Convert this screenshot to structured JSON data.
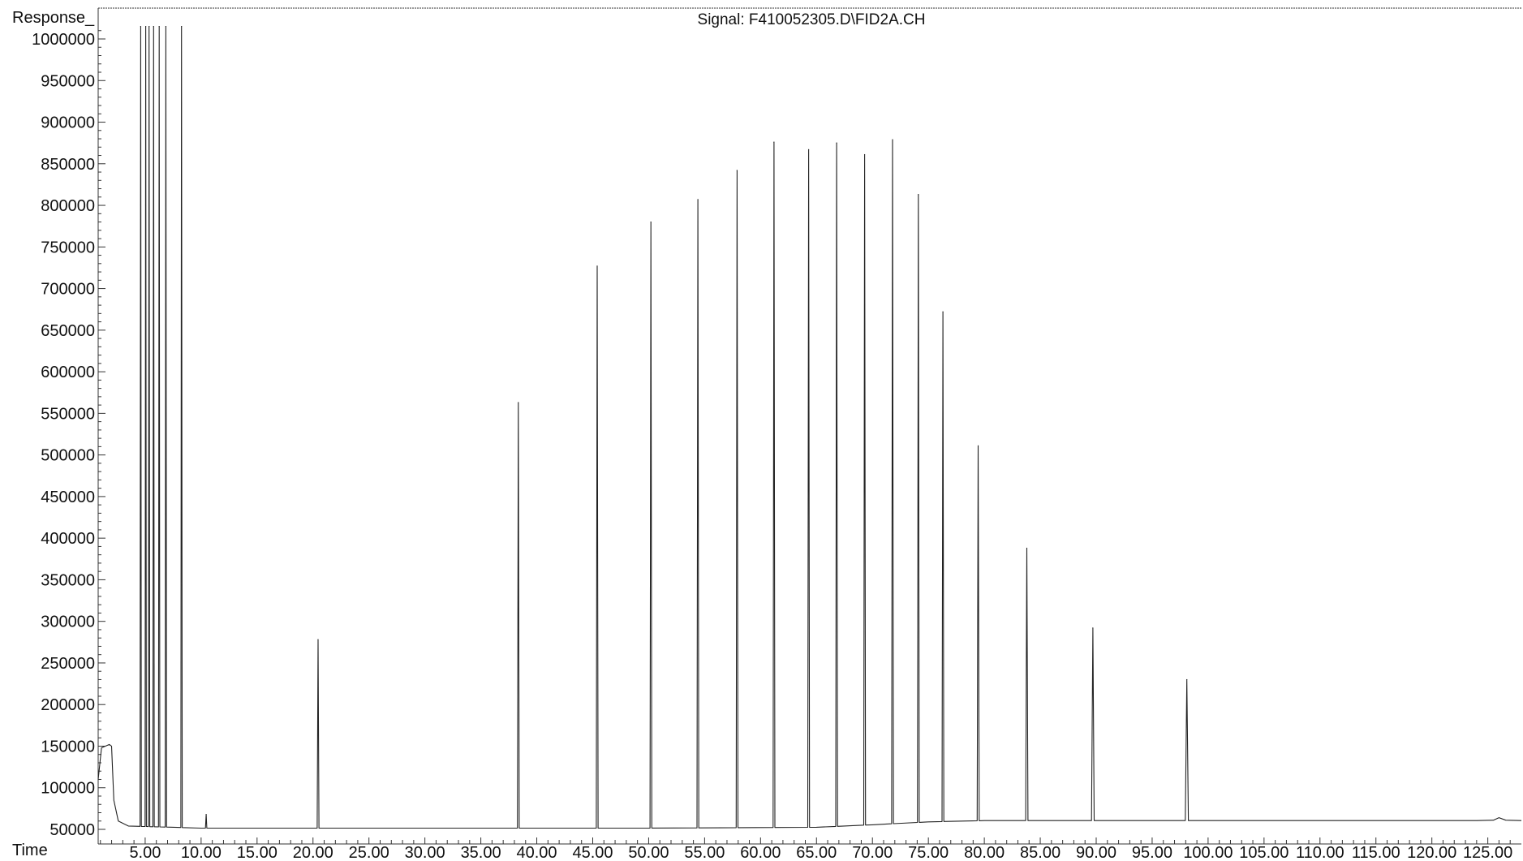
{
  "chart_data": {
    "type": "line",
    "title": "Signal: F410052305.D\\FID2A.CH",
    "ylabel": "Response_",
    "xlabel": "Time",
    "xlim": [
      0.8,
      128.0
    ],
    "ylim": [
      50000,
      1015000
    ],
    "x_ticks": [
      5,
      10,
      15,
      20,
      25,
      30,
      35,
      40,
      45,
      50,
      55,
      60,
      65,
      70,
      75,
      80,
      85,
      90,
      95,
      100,
      105,
      110,
      115,
      120,
      125
    ],
    "x_tick_labels": [
      "5.00",
      "10.00",
      "15.00",
      "20.00",
      "25.00",
      "30.00",
      "35.00",
      "40.00",
      "45.00",
      "50.00",
      "55.00",
      "60.00",
      "65.00",
      "70.00",
      "75.00",
      "80.00",
      "85.00",
      "90.00",
      "95.00",
      "100.00",
      "105.00",
      "110.00",
      "115.00",
      "120.00",
      "125.00"
    ],
    "y_ticks": [
      50000,
      100000,
      150000,
      200000,
      250000,
      300000,
      350000,
      400000,
      450000,
      500000,
      550000,
      600000,
      650000,
      700000,
      750000,
      800000,
      850000,
      900000,
      950000,
      1000000
    ],
    "y_tick_labels": [
      "50000",
      "100000",
      "150000",
      "200000",
      "250000",
      "300000",
      "350000",
      "400000",
      "450000",
      "500000",
      "550000",
      "600000",
      "650000",
      "700000",
      "750000",
      "800000",
      "850000",
      "900000",
      "950000",
      "1000000"
    ],
    "grid": false,
    "legend": "none",
    "colors": {
      "trace": "#222222",
      "axis": "#333333",
      "background": "#ffffff"
    },
    "baseline": [
      {
        "x": 0.8,
        "y": 110000
      },
      {
        "x": 1.1,
        "y": 148000
      },
      {
        "x": 1.8,
        "y": 152000
      },
      {
        "x": 2.0,
        "y": 150000
      },
      {
        "x": 2.2,
        "y": 85000
      },
      {
        "x": 2.6,
        "y": 60000
      },
      {
        "x": 3.5,
        "y": 54000
      },
      {
        "x": 10,
        "y": 51500
      },
      {
        "x": 50,
        "y": 51500
      },
      {
        "x": 65,
        "y": 52500
      },
      {
        "x": 70,
        "y": 55500
      },
      {
        "x": 75,
        "y": 59000
      },
      {
        "x": 80,
        "y": 60500
      },
      {
        "x": 100,
        "y": 60500
      },
      {
        "x": 124,
        "y": 60500
      },
      {
        "x": 125.5,
        "y": 61000
      },
      {
        "x": 126.0,
        "y": 64000
      },
      {
        "x": 126.6,
        "y": 61000
      },
      {
        "x": 128.0,
        "y": 60500
      }
    ],
    "peaks": [
      {
        "x": 4.6,
        "y": 1015000,
        "width": 0.12
      },
      {
        "x": 5.05,
        "y": 1015000,
        "width": 0.12
      },
      {
        "x": 5.35,
        "y": 1015000,
        "width": 0.12
      },
      {
        "x": 5.75,
        "y": 1015000,
        "width": 0.12
      },
      {
        "x": 6.25,
        "y": 1015000,
        "width": 0.12
      },
      {
        "x": 6.85,
        "y": 1015000,
        "width": 0.12
      },
      {
        "x": 8.25,
        "y": 1015000,
        "width": 0.12
      },
      {
        "x": 10.45,
        "y": 68000,
        "width": 0.12
      },
      {
        "x": 20.45,
        "y": 278000,
        "width": 0.16
      },
      {
        "x": 38.35,
        "y": 563000,
        "width": 0.16
      },
      {
        "x": 45.4,
        "y": 727000,
        "width": 0.16
      },
      {
        "x": 50.2,
        "y": 780000,
        "width": 0.16
      },
      {
        "x": 54.4,
        "y": 807000,
        "width": 0.16
      },
      {
        "x": 57.9,
        "y": 842000,
        "width": 0.16
      },
      {
        "x": 61.2,
        "y": 876000,
        "width": 0.16
      },
      {
        "x": 64.3,
        "y": 867000,
        "width": 0.16
      },
      {
        "x": 66.8,
        "y": 875000,
        "width": 0.16
      },
      {
        "x": 69.3,
        "y": 861000,
        "width": 0.16
      },
      {
        "x": 71.8,
        "y": 879000,
        "width": 0.16
      },
      {
        "x": 74.1,
        "y": 813000,
        "width": 0.16
      },
      {
        "x": 76.3,
        "y": 672000,
        "width": 0.16
      },
      {
        "x": 79.45,
        "y": 511000,
        "width": 0.18
      },
      {
        "x": 83.8,
        "y": 388000,
        "width": 0.2
      },
      {
        "x": 89.7,
        "y": 292000,
        "width": 0.24
      },
      {
        "x": 98.1,
        "y": 230000,
        "width": 0.28
      }
    ]
  }
}
